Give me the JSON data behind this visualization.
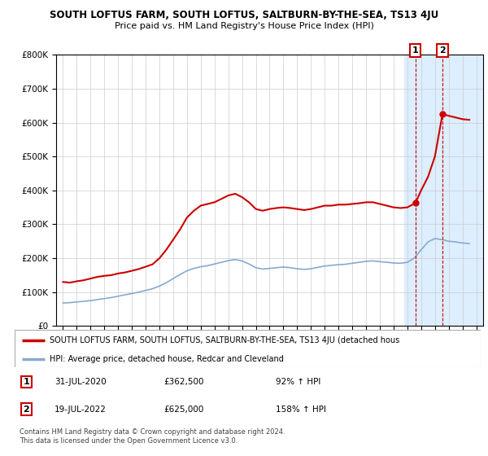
{
  "title": "SOUTH LOFTUS FARM, SOUTH LOFTUS, SALTBURN-BY-THE-SEA, TS13 4JU",
  "subtitle": "Price paid vs. HM Land Registry's House Price Index (HPI)",
  "ylim": [
    0,
    800000
  ],
  "xlim_start": 1994.5,
  "xlim_end": 2025.5,
  "sale1": {
    "year": 2020.58,
    "price": 362500,
    "label": "1"
  },
  "sale2": {
    "year": 2022.55,
    "price": 625000,
    "label": "2"
  },
  "highlight_start": 2019.8,
  "highlight_end": 2025.5,
  "red_color": "#cc0000",
  "blue_color": "#88aacc",
  "highlight_color": "#ddeeff",
  "legend_red": "SOUTH LOFTUS FARM, SOUTH LOFTUS, SALTBURN-BY-THE-SEA, TS13 4JU (detached hous",
  "legend_blue": "HPI: Average price, detached house, Redcar and Cleveland",
  "annotation1_date": "31-JUL-2020",
  "annotation1_price": "£362,500",
  "annotation1_hpi": "92% ↑ HPI",
  "annotation2_date": "19-JUL-2022",
  "annotation2_price": "£625,000",
  "annotation2_hpi": "158% ↑ HPI",
  "footer": "Contains HM Land Registry data © Crown copyright and database right 2024.\nThis data is licensed under the Open Government Licence v3.0.",
  "red_line_x": [
    1995.0,
    1995.5,
    1996.0,
    1996.5,
    1997.0,
    1997.5,
    1998.0,
    1998.5,
    1999.0,
    1999.5,
    2000.0,
    2000.5,
    2001.0,
    2001.5,
    2002.0,
    2002.5,
    2003.0,
    2003.5,
    2004.0,
    2004.5,
    2005.0,
    2005.5,
    2006.0,
    2006.5,
    2007.0,
    2007.5,
    2008.0,
    2008.5,
    2009.0,
    2009.5,
    2010.0,
    2010.5,
    2011.0,
    2011.5,
    2012.0,
    2012.5,
    2013.0,
    2013.5,
    2014.0,
    2014.5,
    2015.0,
    2015.5,
    2016.0,
    2016.5,
    2017.0,
    2017.5,
    2018.0,
    2018.5,
    2019.0,
    2019.5,
    2020.0,
    2020.58,
    2021.0,
    2021.5,
    2022.0,
    2022.55,
    2023.0,
    2023.5,
    2024.0,
    2024.5
  ],
  "red_line_y": [
    130000,
    128000,
    132000,
    135000,
    140000,
    145000,
    148000,
    150000,
    155000,
    158000,
    163000,
    168000,
    175000,
    182000,
    200000,
    225000,
    255000,
    285000,
    320000,
    340000,
    355000,
    360000,
    365000,
    375000,
    385000,
    390000,
    380000,
    365000,
    345000,
    340000,
    345000,
    348000,
    350000,
    348000,
    345000,
    342000,
    345000,
    350000,
    355000,
    355000,
    358000,
    358000,
    360000,
    362000,
    365000,
    365000,
    360000,
    355000,
    350000,
    348000,
    350000,
    362500,
    400000,
    440000,
    500000,
    625000,
    620000,
    615000,
    610000,
    608000
  ],
  "blue_line_x": [
    1995.0,
    1995.5,
    1996.0,
    1996.5,
    1997.0,
    1997.5,
    1998.0,
    1998.5,
    1999.0,
    1999.5,
    2000.0,
    2000.5,
    2001.0,
    2001.5,
    2002.0,
    2002.5,
    2003.0,
    2003.5,
    2004.0,
    2004.5,
    2005.0,
    2005.5,
    2006.0,
    2006.5,
    2007.0,
    2007.5,
    2008.0,
    2008.5,
    2009.0,
    2009.5,
    2010.0,
    2010.5,
    2011.0,
    2011.5,
    2012.0,
    2012.5,
    2013.0,
    2013.5,
    2014.0,
    2014.5,
    2015.0,
    2015.5,
    2016.0,
    2016.5,
    2017.0,
    2017.5,
    2018.0,
    2018.5,
    2019.0,
    2019.5,
    2020.0,
    2020.5,
    2021.0,
    2021.5,
    2022.0,
    2022.5,
    2023.0,
    2023.5,
    2024.0,
    2024.5
  ],
  "blue_line_y": [
    68000,
    69000,
    71000,
    73000,
    75000,
    78000,
    81000,
    84000,
    88000,
    92000,
    96000,
    100000,
    105000,
    110000,
    118000,
    128000,
    140000,
    152000,
    163000,
    170000,
    175000,
    178000,
    183000,
    188000,
    193000,
    196000,
    192000,
    183000,
    172000,
    168000,
    170000,
    172000,
    174000,
    172000,
    169000,
    167000,
    169000,
    173000,
    177000,
    179000,
    181000,
    182000,
    185000,
    188000,
    191000,
    192000,
    190000,
    188000,
    186000,
    185000,
    188000,
    200000,
    225000,
    248000,
    258000,
    255000,
    250000,
    248000,
    245000,
    243000
  ]
}
